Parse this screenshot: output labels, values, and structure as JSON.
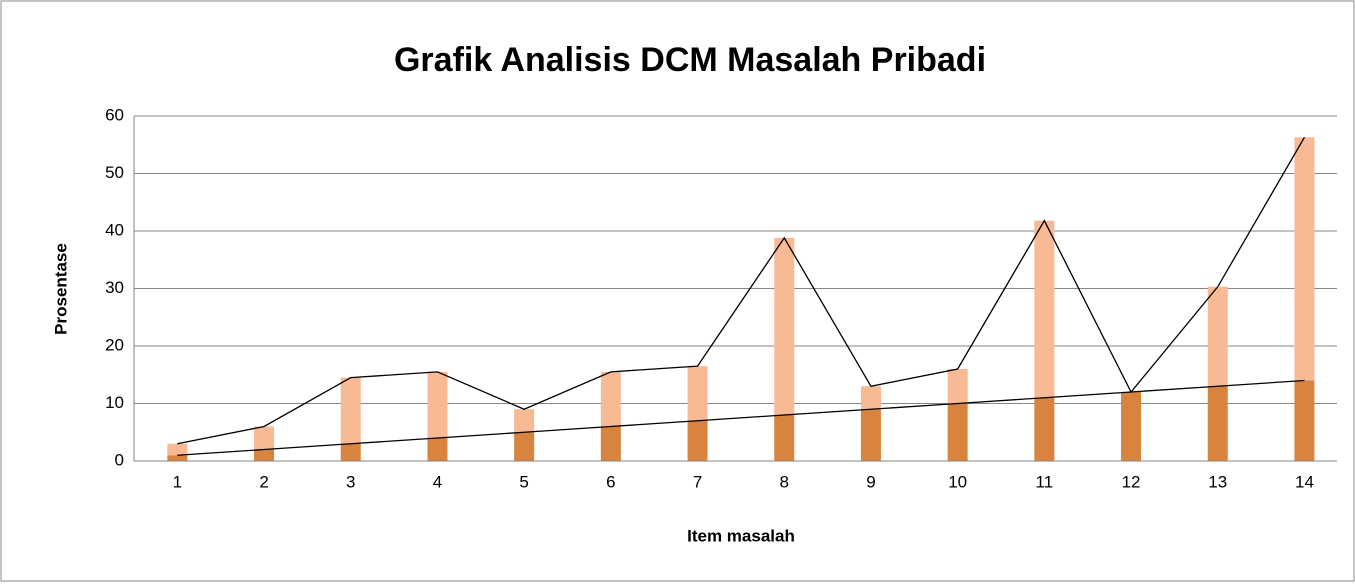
{
  "chart_data": {
    "type": "stacked-bar-line",
    "title": "Grafik Analisis DCM Masalah Pribadi",
    "x_label": "Item masalah",
    "y_label": "Prosentase",
    "categories": [
      "1",
      "2",
      "3",
      "4",
      "5",
      "6",
      "7",
      "8",
      "9",
      "10",
      "11",
      "12",
      "13",
      "14"
    ],
    "series": [
      {
        "color": "#d9843e",
        "values": [
          1,
          2,
          3,
          4,
          5,
          6,
          7,
          8,
          9,
          10,
          11,
          12,
          13,
          14
        ]
      },
      {
        "color": "#f8b995",
        "values": [
          2,
          4,
          11.5,
          11.5,
          4,
          9.5,
          9.5,
          30.8,
          4,
          6,
          30.8,
          0,
          17.3,
          42.3
        ]
      }
    ],
    "ylim": [
      0,
      60
    ],
    "yticks": [
      0,
      10,
      20,
      30,
      40,
      50,
      60
    ],
    "grid": true,
    "line_color": "#000000"
  }
}
